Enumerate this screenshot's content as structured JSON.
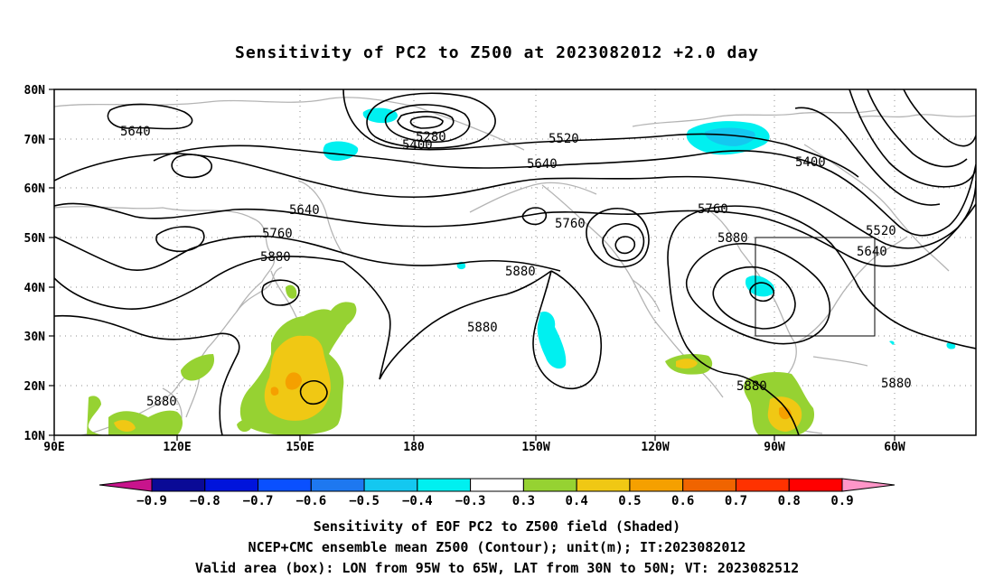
{
  "title": "Sensitivity of PC2 to Z500 at 2023082012 +2.0 day",
  "lat_labels": [
    "80N",
    "70N",
    "60N",
    "50N",
    "40N",
    "30N",
    "20N",
    "10N"
  ],
  "lon_labels": [
    "90E",
    "120E",
    "150E",
    "180",
    "150W",
    "120W",
    "90W",
    "60W"
  ],
  "contour_labels": [
    "5640",
    "5280",
    "5400",
    "5520",
    "5640",
    "5400",
    "5640",
    "5760",
    "5760",
    "5760",
    "5880",
    "5880",
    "5520",
    "5640",
    "5880",
    "5880",
    "5880",
    "5880",
    "5880"
  ],
  "colorbar": {
    "labels": [
      "−0.9",
      "−0.8",
      "−0.7",
      "−0.6",
      "−0.5",
      "−0.4",
      "−0.3",
      "0.3",
      "0.4",
      "0.5",
      "0.6",
      "0.7",
      "0.8",
      "0.9"
    ],
    "colors": [
      "#c8148c",
      "#0a0a96",
      "#0014dc",
      "#0a50ff",
      "#1e78f0",
      "#14c8f0",
      "#00f0f0",
      "#ffffff",
      "#96d232",
      "#f0c814",
      "#f5a000",
      "#f06400",
      "#ff3200",
      "#ff0000",
      "#ff96c8"
    ]
  },
  "captions": [
    "Sensitivity of EOF PC2 to Z500 field (Shaded)",
    "NCEP+CMC ensemble mean Z500 (Contour); unit(m); IT:2023082012",
    "Valid area (box): LON from 95W to 65W, LAT from 30N to 50N; VT: 2023082512"
  ],
  "colors": {
    "coast": "#b4b4b4",
    "contour": "#000000",
    "grid": "#8c8c8c",
    "pos_fill": "#96d232",
    "pos_fill_mid": "#f0c814",
    "pos_fill_high": "#f5a000",
    "neg_fill": "#00f0f0",
    "neg_fill_mid": "#14c8f0"
  }
}
